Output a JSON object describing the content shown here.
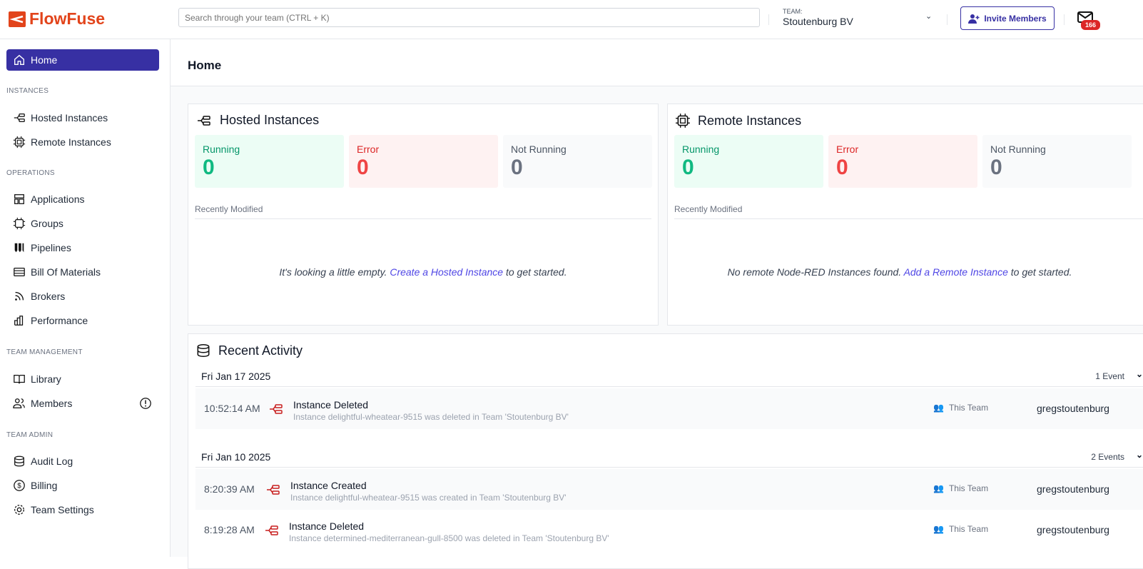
{
  "header": {
    "brand": "FlowFuse",
    "search_placeholder": "Search through your team (CTRL + K)",
    "team_label": "TEAM:",
    "team_name": "Stoutenburg BV",
    "invite_label": "Invite Members",
    "notification_count": "166"
  },
  "sidebar": {
    "home": "Home",
    "sections": [
      "INSTANCES",
      "OPERATIONS",
      "TEAM MANAGEMENT",
      "TEAM ADMIN"
    ],
    "items": [
      "Hosted Instances",
      "Remote Instances",
      "Applications",
      "Groups",
      "Pipelines",
      "Bill Of Materials",
      "Brokers",
      "Performance",
      "Library",
      "Members",
      "Audit Log",
      "Billing",
      "Team Settings"
    ]
  },
  "page": {
    "title": "Home"
  },
  "hosted": {
    "title": "Hosted Instances",
    "running_label": "Running",
    "running": "0",
    "error_label": "Error",
    "error": "0",
    "not_running_label": "Not Running",
    "not_running": "0",
    "recent_label": "Recently Modified",
    "empty_pre": "It's looking a little empty. ",
    "empty_link": "Create a Hosted Instance",
    "empty_post": " to get started."
  },
  "remote": {
    "title": "Remote Instances",
    "running_label": "Running",
    "running": "0",
    "error_label": "Error",
    "error": "0",
    "not_running_label": "Not Running",
    "not_running": "0",
    "recent_label": "Recently Modified",
    "empty_pre": "No remote Node-RED Instances found. ",
    "empty_link": "Add a Remote Instance",
    "empty_post": " to get started."
  },
  "activity": {
    "title": "Recent Activity",
    "days": [
      {
        "date": "Fri Jan 17 2025",
        "count": "1 Event",
        "events": [
          {
            "time": "10:52:14 AM",
            "title": "Instance Deleted",
            "desc": "Instance delightful-wheatear-9515 was deleted in Team 'Stoutenburg BV'",
            "scope": "This Team",
            "user": "gregstoutenburg"
          }
        ]
      },
      {
        "date": "Fri Jan 10 2025",
        "count": "2 Events",
        "events": [
          {
            "time": "8:20:39 AM",
            "title": "Instance Created",
            "desc": "Instance delightful-wheatear-9515 was created in Team 'Stoutenburg BV'",
            "scope": "This Team",
            "user": "gregstoutenburg"
          },
          {
            "time": "8:19:28 AM",
            "title": "Instance Deleted",
            "desc": "Instance determined-mediterranean-gull-8500 was deleted in Team 'Stoutenburg BV'",
            "scope": "This Team",
            "user": "gregstoutenburg"
          }
        ]
      }
    ]
  },
  "colors": {
    "accent": "#3730a3",
    "brand": "#e2441b",
    "running": "#10b981",
    "error": "#ef4444",
    "muted": "#6b7280"
  }
}
